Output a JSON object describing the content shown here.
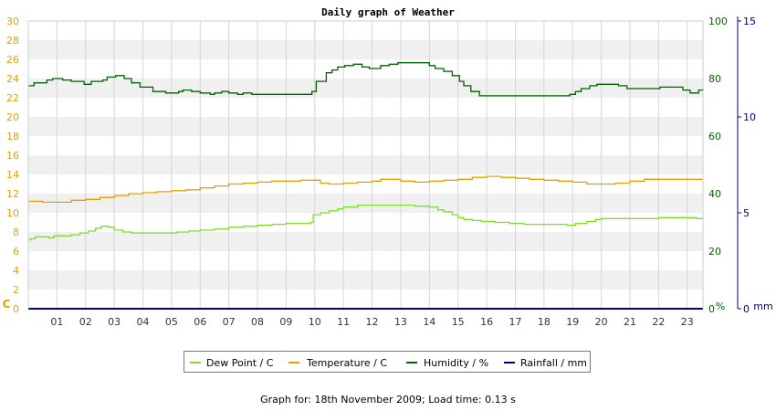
{
  "chart_data": {
    "type": "line",
    "title": "Daily graph of Weather",
    "x_ticks": [
      "01",
      "02",
      "03",
      "04",
      "05",
      "06",
      "07",
      "08",
      "09",
      "10",
      "11",
      "12",
      "13",
      "14",
      "15",
      "16",
      "17",
      "18",
      "19",
      "20",
      "21",
      "22",
      "23"
    ],
    "x_tick_labels": [
      "01",
      "02",
      "03",
      "04",
      "05",
      "06",
      "07",
      "08",
      "09",
      "10",
      "11",
      "12",
      "13",
      "14",
      "15",
      "16",
      "17",
      "18",
      "19",
      "20",
      "21",
      "22",
      "23"
    ],
    "xlim": [
      0,
      23.55
    ],
    "axes": {
      "left": {
        "unit": "C",
        "ylim": [
          0,
          30
        ],
        "ticks": [
          "0",
          "2",
          "4",
          "6",
          "8",
          "10",
          "12",
          "14",
          "16",
          "18",
          "20",
          "22",
          "24",
          "26",
          "28",
          "30"
        ],
        "color": "#e8a000"
      },
      "humidity": {
        "unit": "%",
        "ylim": [
          0,
          100
        ],
        "ticks": [
          "0",
          "20",
          "40",
          "60",
          "80",
          "100"
        ],
        "color": "#006400"
      },
      "rain": {
        "unit": "mm",
        "ylim": [
          0,
          15
        ],
        "ticks": [
          "0",
          "5",
          "10",
          "15"
        ],
        "color": "#00008b"
      }
    },
    "grid": true,
    "legend_position": "bottom",
    "series": [
      {
        "name": "Dew Point / C",
        "axis": "left",
        "color": "#7fdd2a",
        "x": [
          0,
          0.1,
          0.25,
          0.7,
          0.9,
          1.2,
          1.5,
          1.8,
          2.1,
          2.35,
          2.55,
          2.8,
          3.0,
          3.3,
          3.6,
          4.0,
          4.6,
          5.2,
          5.6,
          6.0,
          6.5,
          7.0,
          7.5,
          8.0,
          8.5,
          9.0,
          9.5,
          9.85,
          9.95,
          10.2,
          10.5,
          10.8,
          11.0,
          11.5,
          12.0,
          12.5,
          13.0,
          13.5,
          14.0,
          14.3,
          14.5,
          14.8,
          15.0,
          15.2,
          15.5,
          15.8,
          16.3,
          16.8,
          17.3,
          17.8,
          18.3,
          18.8,
          19.1,
          19.5,
          19.8,
          20.0,
          20.5,
          21.0,
          21.5,
          22.0,
          22.5,
          23.0,
          23.3,
          23.55
        ],
        "y": [
          7.2,
          7.3,
          7.5,
          7.4,
          7.6,
          7.6,
          7.7,
          7.9,
          8.1,
          8.4,
          8.6,
          8.5,
          8.2,
          8.0,
          7.9,
          7.9,
          7.9,
          8.0,
          8.1,
          8.2,
          8.3,
          8.5,
          8.6,
          8.7,
          8.8,
          8.9,
          8.9,
          9.0,
          9.8,
          10.0,
          10.2,
          10.4,
          10.6,
          10.8,
          10.8,
          10.8,
          10.8,
          10.7,
          10.6,
          10.3,
          10.1,
          9.8,
          9.5,
          9.3,
          9.2,
          9.1,
          9.0,
          8.9,
          8.8,
          8.8,
          8.8,
          8.7,
          8.9,
          9.1,
          9.3,
          9.4,
          9.4,
          9.4,
          9.4,
          9.5,
          9.5,
          9.5,
          9.4,
          9.5
        ]
      },
      {
        "name": "Temperature / C",
        "axis": "left",
        "color": "#e8a000",
        "x": [
          0,
          0.5,
          1.0,
          1.5,
          2.0,
          2.5,
          3.0,
          3.5,
          4.0,
          4.5,
          5.0,
          5.5,
          6.0,
          6.5,
          7.0,
          7.5,
          8.0,
          8.5,
          9.0,
          9.5,
          9.95,
          10.2,
          10.5,
          11.0,
          11.5,
          12.0,
          12.3,
          12.6,
          13.0,
          13.5,
          14.0,
          14.5,
          15.0,
          15.5,
          16.0,
          16.5,
          17.0,
          17.5,
          18.0,
          18.5,
          19.0,
          19.5,
          20.0,
          20.5,
          21.0,
          21.5,
          22.0,
          22.5,
          23.0,
          23.55
        ],
        "y": [
          11.2,
          11.1,
          11.1,
          11.3,
          11.4,
          11.6,
          11.8,
          12.0,
          12.1,
          12.2,
          12.3,
          12.4,
          12.6,
          12.8,
          13.0,
          13.1,
          13.2,
          13.3,
          13.3,
          13.4,
          13.4,
          13.1,
          13.0,
          13.1,
          13.2,
          13.3,
          13.5,
          13.5,
          13.3,
          13.2,
          13.3,
          13.4,
          13.5,
          13.7,
          13.8,
          13.7,
          13.6,
          13.5,
          13.4,
          13.3,
          13.2,
          13.0,
          13.0,
          13.1,
          13.3,
          13.5,
          13.5,
          13.5,
          13.5,
          13.5
        ]
      },
      {
        "name": "Humidity / %",
        "axis": "humidity",
        "color": "#006400",
        "x": [
          0,
          0.2,
          0.65,
          0.85,
          1.2,
          1.5,
          1.95,
          2.2,
          2.6,
          2.75,
          3.05,
          3.35,
          3.6,
          3.9,
          4.35,
          4.8,
          4.95,
          5.25,
          5.4,
          5.7,
          6.0,
          6.35,
          6.5,
          6.75,
          7.0,
          7.3,
          7.5,
          7.8,
          8.3,
          8.6,
          8.8,
          9.2,
          9.55,
          9.75,
          9.9,
          10.05,
          10.4,
          10.6,
          10.8,
          11.05,
          11.35,
          11.65,
          11.9,
          12.3,
          12.6,
          12.9,
          13.2,
          13.65,
          14.0,
          14.2,
          14.5,
          14.8,
          15.05,
          15.2,
          15.45,
          15.75,
          16.25,
          16.8,
          17.3,
          17.8,
          18.3,
          18.6,
          18.9,
          19.1,
          19.3,
          19.6,
          19.85,
          20.25,
          20.6,
          20.9,
          21.15,
          21.5,
          22.05,
          22.4,
          22.6,
          22.85,
          23.1,
          23.4,
          23.55
        ],
        "y": [
          77.5,
          78.5,
          79.5,
          80,
          79.5,
          79,
          78,
          79,
          79.5,
          80.5,
          81,
          80,
          78.5,
          77,
          75.5,
          75,
          75,
          75.5,
          76,
          75.5,
          75,
          74.5,
          75,
          75.5,
          75,
          74.5,
          75,
          74.5,
          74.5,
          74.5,
          74.5,
          74.5,
          74.5,
          74.5,
          75.5,
          79,
          82,
          83,
          84,
          84.5,
          85,
          84,
          83.5,
          84.5,
          85,
          85.5,
          85.5,
          85.5,
          84.5,
          83.5,
          82.5,
          81,
          79,
          77.5,
          75.5,
          74,
          74,
          74,
          74,
          74,
          74,
          74,
          74.5,
          75.5,
          76.5,
          77.5,
          78,
          78,
          77.5,
          76.5,
          76.5,
          76.5,
          77,
          77,
          77,
          76,
          75,
          76,
          76.5
        ]
      },
      {
        "name": "Rainfall / mm",
        "axis": "rain",
        "color": "#00008b",
        "x": [
          0,
          23.55
        ],
        "y": [
          0,
          0
        ]
      }
    ]
  },
  "footer": "Graph for: 18th November 2009; Load time: 0.13 s"
}
